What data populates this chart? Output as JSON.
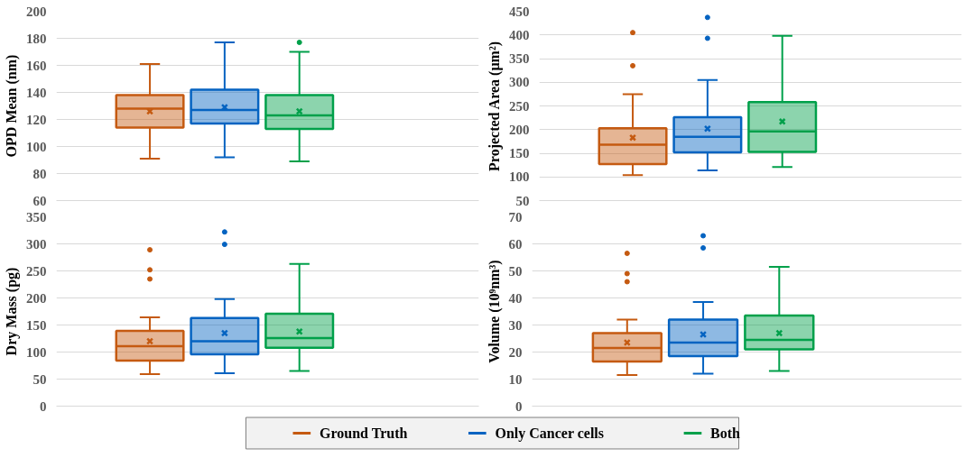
{
  "chart_data": [
    {
      "type": "box",
      "ylabel": "OPD Mean (nm)",
      "categories": [
        null
      ],
      "ylim": [
        60,
        200
      ],
      "yticks": [
        60,
        80,
        100,
        120,
        140,
        160,
        180,
        200
      ],
      "grid": "y",
      "tick_labels": "y",
      "legend": "bottom",
      "series": [
        {
          "name": "Ground Truth",
          "color": "#c55a11",
          "boxes": [
            {
              "low": 91,
              "q1": 114,
              "median": 128,
              "q3": 138,
              "high": 161,
              "mean": 126
            }
          ]
        },
        {
          "name": "Only Cancer cells",
          "color": "#0563c1",
          "boxes": [
            {
              "low": 92,
              "q1": 117,
              "median": 127,
              "q3": 142,
              "high": 177,
              "mean": 129
            }
          ]
        },
        {
          "name": "Both",
          "color": "#00a04a",
          "boxes": [
            {
              "low": 89,
              "q1": 113,
              "median": 123,
              "q3": 138,
              "high": 170,
              "mean": 126,
              "outliers": [
                177
              ]
            }
          ]
        }
      ]
    },
    {
      "type": "box",
      "ylabel": "Projected Area (µm²)",
      "categories": [
        null
      ],
      "ylim": [
        50,
        450
      ],
      "yticks": [
        50,
        100,
        150,
        200,
        250,
        300,
        350,
        400,
        450
      ],
      "grid": "y",
      "tick_labels": "y",
      "series": [
        {
          "color": "#c55a11",
          "boxes": [
            {
              "low": 104,
              "q1": 127,
              "median": 168,
              "q3": 203,
              "high": 275,
              "mean": 183,
              "outliers": [
                335,
                405
              ]
            }
          ]
        },
        {
          "color": "#0563c1",
          "boxes": [
            {
              "low": 114,
              "q1": 152,
              "median": 185,
              "q3": 226,
              "high": 305,
              "mean": 202,
              "outliers": [
                393,
                437
              ]
            }
          ]
        },
        {
          "color": "#00a04a",
          "boxes": [
            {
              "low": 121,
              "q1": 153,
              "median": 196,
              "q3": 258,
              "high": 398,
              "mean": 217
            }
          ]
        }
      ]
    },
    {
      "type": "box",
      "ylabel": "Dry Mass (pg)",
      "categories": [
        null
      ],
      "ylim": [
        0,
        350
      ],
      "yticks": [
        0,
        50,
        100,
        150,
        200,
        250,
        300,
        350
      ],
      "grid": "y",
      "tick_labels": "y",
      "series": [
        {
          "color": "#c55a11",
          "boxes": [
            {
              "low": 59,
              "q1": 84,
              "median": 111,
              "q3": 139,
              "high": 164,
              "mean": 120,
              "outliers": [
                235,
                252,
                289
              ]
            }
          ]
        },
        {
          "color": "#0563c1",
          "boxes": [
            {
              "low": 61,
              "q1": 96,
              "median": 120,
              "q3": 163,
              "high": 198,
              "mean": 135,
              "outliers": [
                299,
                322
              ]
            }
          ]
        },
        {
          "color": "#00a04a",
          "boxes": [
            {
              "low": 65,
              "q1": 108,
              "median": 126,
              "q3": 171,
              "high": 263,
              "mean": 138
            }
          ]
        }
      ]
    },
    {
      "type": "box",
      "ylabel": "Volume (10⁹nm³)",
      "categories": [
        null
      ],
      "ylim": [
        0,
        70
      ],
      "yticks": [
        0,
        10,
        20,
        30,
        40,
        50,
        60,
        70
      ],
      "grid": "y",
      "tick_labels": "y",
      "series": [
        {
          "color": "#c55a11",
          "boxes": [
            {
              "low": 11.5,
              "q1": 16.5,
              "median": 21.5,
              "q3": 27,
              "high": 32,
              "mean": 23.5,
              "outliers": [
                46,
                49,
                56.5
              ]
            }
          ]
        },
        {
          "color": "#0563c1",
          "boxes": [
            {
              "low": 12,
              "q1": 18.5,
              "median": 23.5,
              "q3": 32,
              "high": 38.5,
              "mean": 26.5,
              "outliers": [
                58.5,
                63
              ]
            }
          ]
        },
        {
          "color": "#00a04a",
          "boxes": [
            {
              "low": 13,
              "q1": 21,
              "median": 24.5,
              "q3": 33.5,
              "high": 51.5,
              "mean": 27
            }
          ]
        }
      ]
    }
  ]
}
